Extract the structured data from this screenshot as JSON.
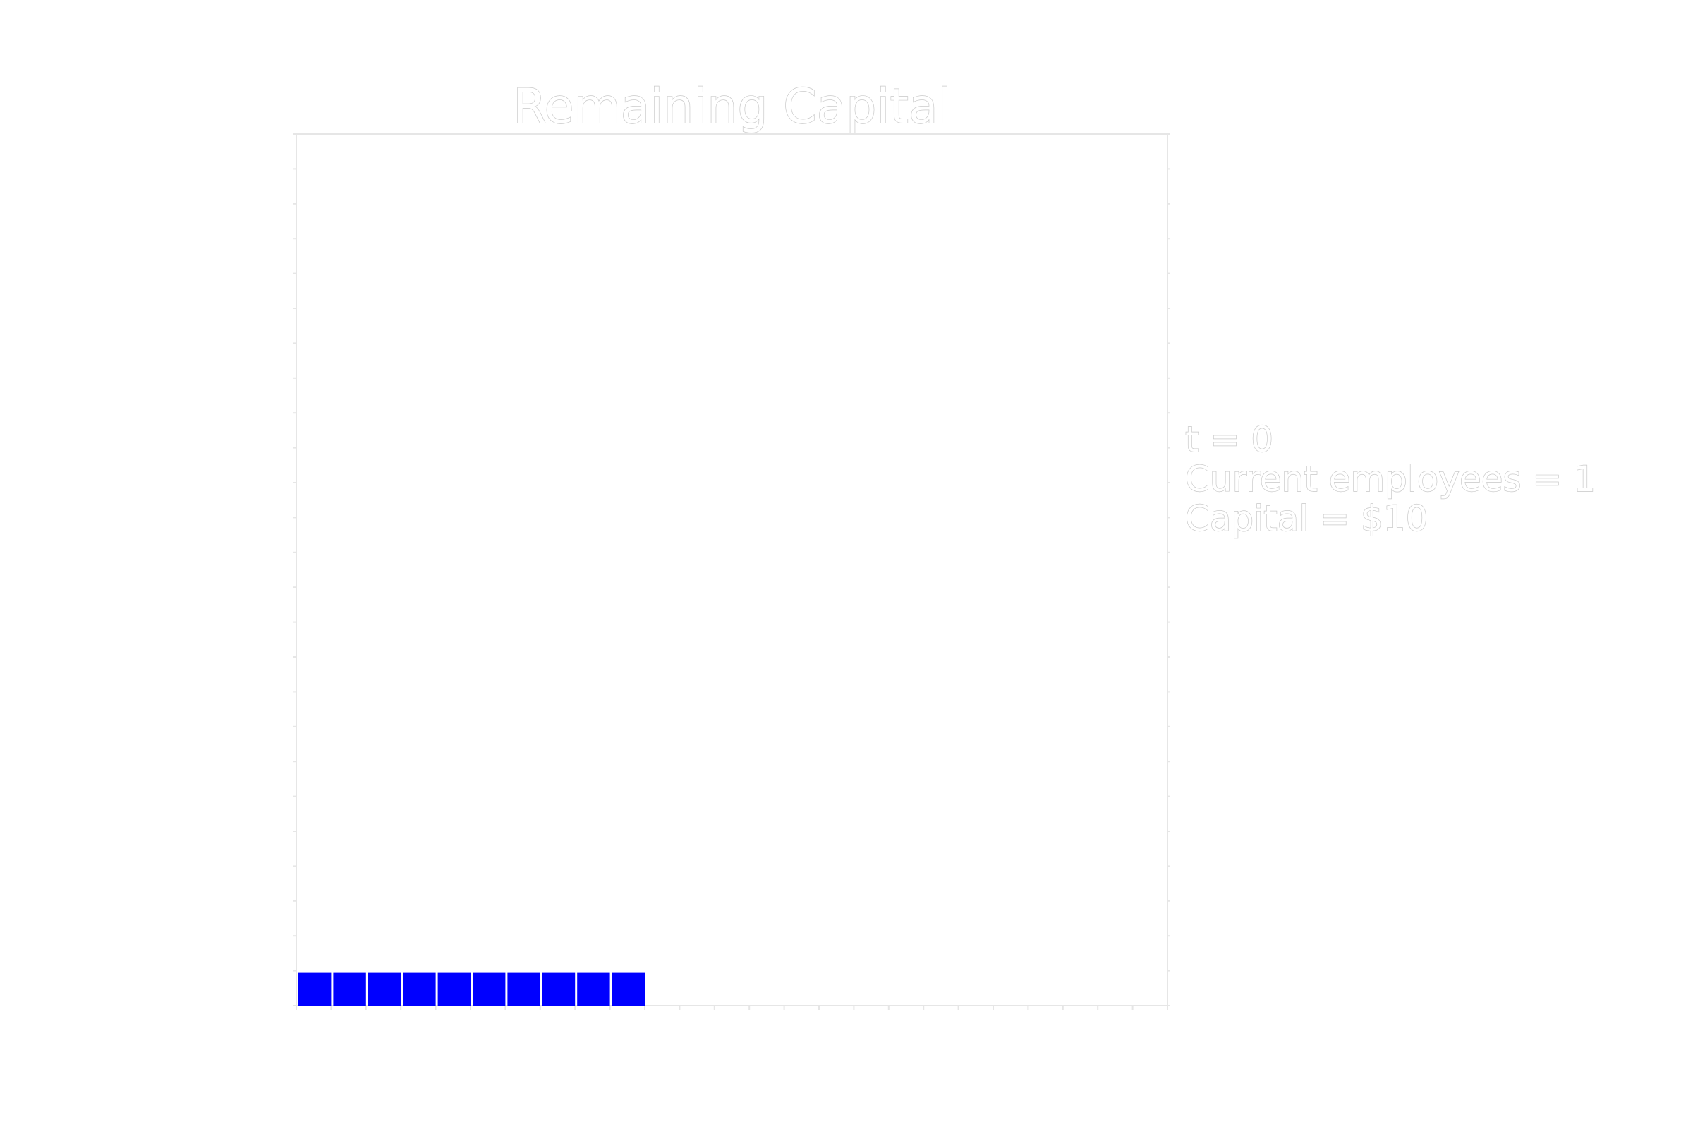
{
  "chart_data": {
    "type": "heatmap",
    "title": "Remaining Capital",
    "grid_columns": 25,
    "grid_rows": 25,
    "filled_cells": 10,
    "cell_color": "#0000ff",
    "grid_color": "#e6e6e6",
    "annotation_lines": [
      "t = 0",
      "Current employees = 1",
      "Capital = $10"
    ],
    "time": 0,
    "current_employees": 1,
    "capital": 10
  }
}
